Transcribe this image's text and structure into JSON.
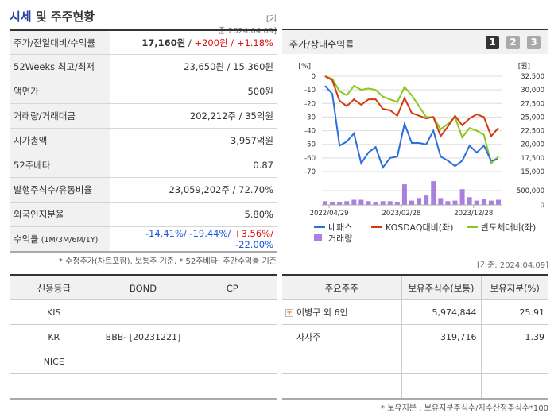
{
  "header": {
    "title_hl": "시세",
    "title_rest": " 및 주주현황",
    "asof": "[기준:2024.04.09]"
  },
  "summary": [
    {
      "label": "주가/전일대비/수익률",
      "price": "17,160원",
      "sep": " / ",
      "change": "+200원 / +1.18%"
    },
    {
      "label": "52Weeks 최고/최저",
      "value": "23,650원 / 15,360원"
    },
    {
      "label": "액면가",
      "value": "500원"
    },
    {
      "label": "거래량/거래대금",
      "value": "202,212주 / 35억원"
    },
    {
      "label": "시가총액",
      "value": "3,957억원"
    },
    {
      "label": "52주베타",
      "value": "0.87"
    },
    {
      "label": "발행주식수/유동비율",
      "value": "23,059,202주 / 72.70%"
    },
    {
      "label": "외국인지분율",
      "value": "5.80%"
    },
    {
      "label": "수익률",
      "label_small": " (1M/3M/6M/1Y)",
      "r1": "-14.41%/ ",
      "r2": "-19.44%/ ",
      "r3": "+3.56%/ ",
      "r4": "-22.00%"
    }
  ],
  "note1": "* 수정주가(차트포함), 보통주 기준, * 52주베타: 주간수익률 기준",
  "chart_panel": {
    "title": "주가/상대수익률",
    "pages": [
      "1",
      "2",
      "3"
    ],
    "active_page": "1"
  },
  "chart_data": {
    "type": "line",
    "left_unit": "[%]",
    "right_unit": "[원]",
    "left_ticks": [
      "0",
      "-10",
      "-20",
      "-30",
      "-40",
      "-50",
      "-60",
      "-70"
    ],
    "right_ticks": [
      "32,500",
      "30,000",
      "27,500",
      "25,000",
      "22,500",
      "20,000",
      "17,500",
      "15,000"
    ],
    "ylim_left": [
      -70,
      0
    ],
    "ylim_right": [
      15000,
      32500
    ],
    "volume_ticks": [
      "500,000",
      "0"
    ],
    "volume_max_tick": 500000,
    "x_labels": [
      {
        "index": 1,
        "label": "2022/04/29"
      },
      {
        "index": 11,
        "label": "2023/02/28"
      },
      {
        "index": 21,
        "label": "2023/12/28"
      }
    ],
    "series": [
      {
        "name": "네패스",
        "color": "#2a6ee0",
        "values": [
          -7,
          -13,
          -51,
          -48,
          -42,
          -64,
          -56,
          -52,
          -67,
          -60,
          -59,
          -35,
          -49,
          -49,
          -50,
          -40,
          -59,
          -62,
          -66,
          -62,
          -51,
          -56,
          -51,
          -62,
          -61
        ]
      },
      {
        "name": "KOSDAQ대비(좌)",
        "color": "#d23a10",
        "values": [
          0,
          -3,
          -18,
          -22,
          -17,
          -21,
          -17,
          -17,
          -24,
          -25,
          -29,
          -16,
          -27,
          -29,
          -31,
          -30,
          -44,
          -37,
          -29,
          -36,
          -31,
          -28,
          -30,
          -44,
          -38
        ]
      },
      {
        "name": "반도체대비(좌)",
        "color": "#8cc61a",
        "values": [
          0,
          -2,
          -11,
          -14,
          -7,
          -10,
          -9,
          -10,
          -15,
          -17,
          -19,
          -8,
          -14,
          -22,
          -30,
          -30,
          -39,
          -35,
          -30,
          -45,
          -38,
          -40,
          -43,
          -64,
          -59
        ]
      }
    ],
    "volume": {
      "name": "거래량",
      "color": "#a97fe0",
      "values": [
        130000,
        110000,
        110000,
        130000,
        180000,
        180000,
        130000,
        110000,
        130000,
        130000,
        110000,
        720000,
        150000,
        240000,
        330000,
        830000,
        240000,
        130000,
        150000,
        550000,
        270000,
        150000,
        200000,
        150000,
        180000
      ]
    }
  },
  "asof2": "[기준: 2024.04.09]",
  "credit": {
    "headers": [
      "신용등급",
      "BOND",
      "CP"
    ],
    "rows": [
      [
        "KIS",
        "",
        ""
      ],
      [
        "KR",
        "BBB-  [20231221]",
        ""
      ],
      [
        "NICE",
        "",
        ""
      ],
      [
        "",
        "",
        ""
      ]
    ]
  },
  "holders": {
    "headers": [
      "주요주주",
      "보유주식수(보통)",
      "보유지분(%)"
    ],
    "rows": [
      [
        "이병구 외 6인",
        "5,974,844",
        "25.91"
      ],
      [
        "자사주",
        "319,716",
        "1.39"
      ],
      [
        "",
        "",
        ""
      ],
      [
        "",
        "",
        ""
      ]
    ]
  },
  "note2": "* 보유지분 : 보유지분주식수/지수산정주식수*100"
}
